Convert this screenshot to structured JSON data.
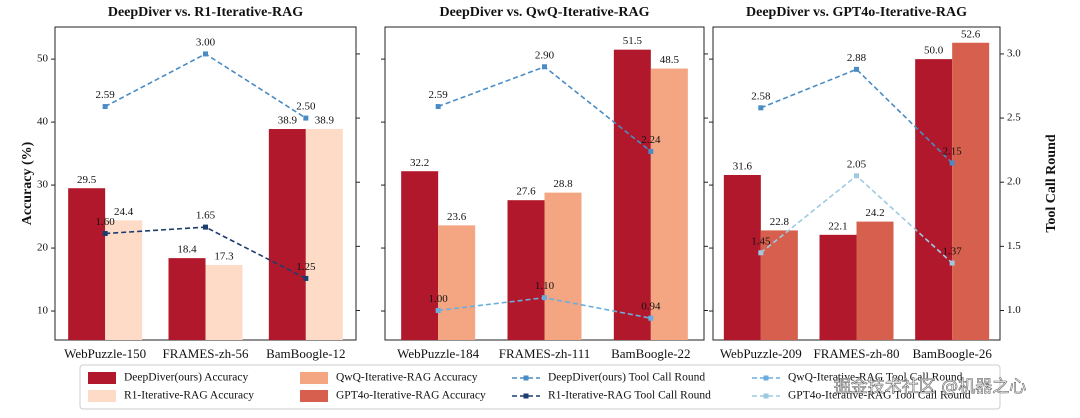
{
  "chart_data": [
    {
      "type": "bar",
      "title": "DeepDiver vs. R1-Iterative-RAG",
      "ylabel": "Accuracy (%)",
      "categories": [
        "WebPuzzle-150",
        "FRAMES-zh-56",
        "BamBoogle-12"
      ],
      "ylim": [
        5.4,
        55.1
      ],
      "yticks": [
        10,
        20,
        30,
        40,
        50
      ],
      "y2lim": [
        0.77,
        3.21
      ],
      "series": [
        {
          "name": "DeepDiver(ours) Accuracy",
          "color": "#b2182b",
          "values": [
            29.5,
            18.4,
            38.9
          ],
          "value_labels": [
            "29.5",
            "18.4",
            "38.9"
          ]
        },
        {
          "name": "R1-Iterative-RAG Accuracy",
          "color": "#fddbc7",
          "values": [
            24.4,
            17.3,
            38.9
          ],
          "value_labels": [
            "24.4",
            "17.3",
            "38.9"
          ]
        },
        {
          "name": "DeepDiver(ours) Tool Call Round",
          "type": "line",
          "axis": "y2",
          "color": "#4a8cc4",
          "values": [
            2.59,
            3.0,
            2.5
          ],
          "value_labels": [
            "2.59",
            "3.00",
            "2.50"
          ]
        },
        {
          "name": "R1-Iterative-RAG Tool Call Round",
          "type": "line",
          "axis": "y2",
          "color": "#1c3d6e",
          "values": [
            1.6,
            1.65,
            1.25
          ],
          "value_labels": [
            "1.60",
            "1.65",
            "1.25"
          ]
        }
      ]
    },
    {
      "type": "bar",
      "title": "DeepDiver vs. QwQ-Iterative-RAG",
      "categories": [
        "WebPuzzle-184",
        "FRAMES-zh-111",
        "BamBoogle-22"
      ],
      "ylim": [
        5.4,
        55.1
      ],
      "y2lim": [
        0.77,
        3.21
      ],
      "series": [
        {
          "name": "DeepDiver(ours) Accuracy",
          "color": "#b2182b",
          "values": [
            32.2,
            27.6,
            51.5
          ],
          "value_labels": [
            "32.2",
            "27.6",
            "51.5"
          ]
        },
        {
          "name": "QwQ-Iterative-RAG Accuracy",
          "color": "#f4a582",
          "values": [
            23.6,
            28.8,
            48.5
          ],
          "value_labels": [
            "23.6",
            "28.8",
            "48.5"
          ]
        },
        {
          "name": "DeepDiver(ours) Tool Call Round",
          "type": "line",
          "axis": "y2",
          "color": "#4a8cc4",
          "values": [
            2.59,
            2.9,
            2.24
          ],
          "value_labels": [
            "2.59",
            "2.90",
            "2.24"
          ]
        },
        {
          "name": "QwQ-Iterative-RAG Tool Call Round",
          "type": "line",
          "axis": "y2",
          "color": "#6aaee0",
          "values": [
            1.0,
            1.1,
            0.94
          ],
          "value_labels": [
            "1.00",
            "1.10",
            "0.94"
          ]
        }
      ]
    },
    {
      "type": "bar",
      "title": "DeepDiver vs. GPT4o-Iterative-RAG",
      "y2label": "Tool Call Round",
      "categories": [
        "WebPuzzle-209",
        "FRAMES-zh-80",
        "BamBoogle-26"
      ],
      "ylim": [
        5.4,
        55.1
      ],
      "y2lim": [
        0.77,
        3.21
      ],
      "y2ticks": [
        {
          "value": 1,
          "label": "1.0"
        },
        1.5,
        {
          "value": 2,
          "label": "2.0"
        },
        2.5,
        {
          "value": 3,
          "label": "3.0"
        }
      ],
      "series": [
        {
          "name": "DeepDiver(ours) Accuracy",
          "color": "#b2182b",
          "values": [
            31.6,
            22.1,
            50.0
          ],
          "value_labels": [
            "31.6",
            "22.1",
            "50.0"
          ]
        },
        {
          "name": "GPT4o-Iterative-RAG Accuracy",
          "color": "#d6604d",
          "values": [
            22.8,
            24.2,
            52.6
          ],
          "value_labels": [
            "22.8",
            "24.2",
            "52.6"
          ]
        },
        {
          "name": "DeepDiver(ours) Tool Call Round",
          "type": "line",
          "axis": "y2",
          "color": "#4a8cc4",
          "values": [
            2.58,
            2.88,
            2.15
          ],
          "value_labels": [
            "2.58",
            "2.88",
            "2.15"
          ]
        },
        {
          "name": "GPT4o-Iterative-RAG Tool Call Round",
          "type": "line",
          "axis": "y2",
          "color": "#9ecae1",
          "values": [
            1.45,
            2.05,
            1.37
          ],
          "value_labels": [
            "1.45",
            "2.05",
            "1.37"
          ]
        }
      ]
    }
  ],
  "watermark": "掘金技术社区 @机器之心"
}
